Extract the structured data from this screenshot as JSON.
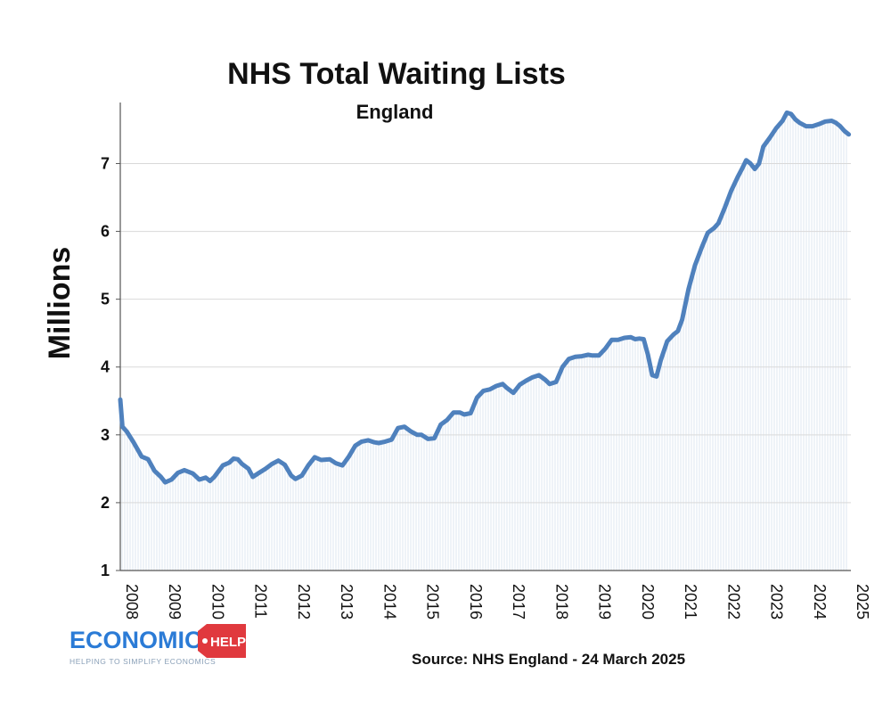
{
  "colors": {
    "line": "#4f81bd",
    "hatch": "#c9d7ea",
    "grid": "#d9d9d9",
    "axis": "#555555",
    "logo_blue": "#2b7bd6",
    "logo_red": "#e0393e"
  },
  "logo": {
    "main": "ECONOMICS",
    "tag_word": "HELP",
    "tagline": "HELPING TO SIMPLIFY ECONOMICS"
  },
  "source": "Source:  NHS England - 24 March 2025",
  "chart_data": {
    "type": "line",
    "title": "NHS Total Waiting Lists",
    "subtitle": "England",
    "ylabel": "Millions",
    "xlabel": "",
    "ylim": [
      1,
      7.9
    ],
    "yticks": [
      1,
      2,
      3,
      4,
      5,
      6,
      7
    ],
    "xlim": [
      2008.0,
      2025.1
    ],
    "xticks": [
      "2008",
      "2009",
      "2010",
      "2011",
      "2012",
      "2013",
      "2014",
      "2015",
      "2016",
      "2017",
      "2018",
      "2019",
      "2020",
      "2021",
      "2022",
      "2023",
      "2024",
      "2025"
    ],
    "grid": "horizontal",
    "series": [
      {
        "x": [
          2008.0,
          2008.05,
          2008.15,
          2008.3,
          2008.5,
          2008.65,
          2008.8,
          2008.95,
          2009.05,
          2009.2,
          2009.35,
          2009.5,
          2009.7,
          2009.85,
          2010.0,
          2010.1,
          2010.2,
          2010.4,
          2010.55,
          2010.65,
          2010.75,
          2010.85,
          2011.0,
          2011.1,
          2011.25,
          2011.4,
          2011.55,
          2011.7,
          2011.85,
          2012.0,
          2012.1,
          2012.25,
          2012.4,
          2012.55,
          2012.7,
          2012.9,
          2013.05,
          2013.2,
          2013.35,
          2013.5,
          2013.65,
          2013.8,
          2013.95,
          2014.05,
          2014.2,
          2014.35,
          2014.5,
          2014.65,
          2014.8,
          2014.95,
          2015.05,
          2015.2,
          2015.35,
          2015.5,
          2015.65,
          2015.8,
          2015.95,
          2016.05,
          2016.2,
          2016.35,
          2016.5,
          2016.65,
          2016.8,
          2016.95,
          2017.05,
          2017.2,
          2017.35,
          2017.5,
          2017.65,
          2017.8,
          2017.95,
          2018.05,
          2018.2,
          2018.35,
          2018.5,
          2018.65,
          2018.8,
          2018.95,
          2019.05,
          2019.2,
          2019.35,
          2019.5,
          2019.65,
          2019.8,
          2019.95,
          2020.05,
          2020.15,
          2020.25,
          2020.35,
          2020.45,
          2020.55,
          2020.65,
          2020.8,
          2020.95,
          2021.05,
          2021.15,
          2021.3,
          2021.45,
          2021.6,
          2021.75,
          2021.9,
          2022.0,
          2022.15,
          2022.3,
          2022.45,
          2022.55,
          2022.65,
          2022.75,
          2022.85,
          2022.95,
          2023.05,
          2023.2,
          2023.35,
          2023.5,
          2023.6,
          2023.7,
          2023.8,
          2023.9,
          2024.05,
          2024.2,
          2024.35,
          2024.5,
          2024.65,
          2024.75,
          2024.85,
          2024.95,
          2025.05
        ],
        "values": [
          3.52,
          3.12,
          3.05,
          2.9,
          2.68,
          2.64,
          2.47,
          2.38,
          2.3,
          2.34,
          2.44,
          2.48,
          2.43,
          2.34,
          2.37,
          2.32,
          2.38,
          2.55,
          2.59,
          2.65,
          2.64,
          2.57,
          2.5,
          2.38,
          2.44,
          2.5,
          2.57,
          2.62,
          2.56,
          2.4,
          2.35,
          2.4,
          2.55,
          2.67,
          2.63,
          2.64,
          2.58,
          2.55,
          2.68,
          2.84,
          2.9,
          2.92,
          2.89,
          2.88,
          2.9,
          2.93,
          3.1,
          3.12,
          3.05,
          3.0,
          3.0,
          2.94,
          2.95,
          3.15,
          3.22,
          3.33,
          3.33,
          3.3,
          3.32,
          3.55,
          3.65,
          3.67,
          3.72,
          3.75,
          3.69,
          3.62,
          3.74,
          3.8,
          3.85,
          3.88,
          3.81,
          3.75,
          3.78,
          4.0,
          4.12,
          4.15,
          4.16,
          4.18,
          4.17,
          4.17,
          4.27,
          4.4,
          4.4,
          4.43,
          4.44,
          4.41,
          4.42,
          4.41,
          4.18,
          3.88,
          3.86,
          4.1,
          4.38,
          4.48,
          4.53,
          4.7,
          5.15,
          5.5,
          5.75,
          5.98,
          6.05,
          6.12,
          6.35,
          6.6,
          6.8,
          6.92,
          7.05,
          7.0,
          6.92,
          7.0,
          7.25,
          7.38,
          7.52,
          7.63,
          7.75,
          7.73,
          7.65,
          7.6,
          7.55,
          7.55,
          7.58,
          7.62,
          7.63,
          7.6,
          7.55,
          7.48,
          7.43
        ]
      }
    ]
  }
}
